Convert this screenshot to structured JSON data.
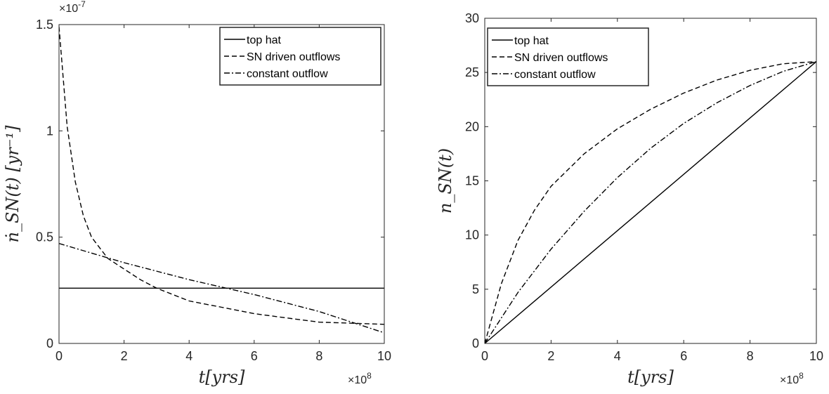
{
  "chart_data": [
    {
      "type": "line",
      "xlabel": "t[yrs]",
      "ylabel": "ṅ_SN(t) [yr⁻¹]",
      "x_multiplier": "×10",
      "x_multiplier_exp": "8",
      "y_multiplier": "×10",
      "y_multiplier_exp": "-7",
      "xlim": [
        0,
        10
      ],
      "ylim": [
        0,
        1.5
      ],
      "xticks": [
        "0",
        "2",
        "4",
        "6",
        "8",
        "10"
      ],
      "yticks": [
        "0",
        "0.5",
        "1",
        "1.5"
      ],
      "grid": false,
      "legend_position": "top-right",
      "series": [
        {
          "name": "top hat",
          "style": "solid",
          "x": [
            0,
            10
          ],
          "y": [
            0.26,
            0.26
          ]
        },
        {
          "name": "SN driven outflows",
          "style": "dashed",
          "x": [
            0,
            0.25,
            0.5,
            0.75,
            1,
            1.5,
            2,
            2.5,
            3,
            4,
            5,
            6,
            7,
            8,
            9,
            10
          ],
          "y": [
            1.49,
            1.02,
            0.76,
            0.6,
            0.5,
            0.4,
            0.35,
            0.3,
            0.26,
            0.2,
            0.17,
            0.14,
            0.12,
            0.1,
            0.095,
            0.09
          ]
        },
        {
          "name": "constant outflow",
          "style": "dashdot",
          "x": [
            0,
            2,
            4,
            6,
            8,
            10
          ],
          "y": [
            0.47,
            0.38,
            0.3,
            0.23,
            0.15,
            0.05
          ]
        }
      ]
    },
    {
      "type": "line",
      "xlabel": "t[yrs]",
      "ylabel": "n_SN(t)",
      "x_multiplier": "×10",
      "x_multiplier_exp": "8",
      "xlim": [
        0,
        10
      ],
      "ylim": [
        0,
        30
      ],
      "xticks": [
        "0",
        "2",
        "4",
        "6",
        "8",
        "10"
      ],
      "yticks": [
        "0",
        "5",
        "10",
        "15",
        "20",
        "25",
        "30"
      ],
      "grid": false,
      "legend_position": "top-left",
      "series": [
        {
          "name": "top hat",
          "style": "solid",
          "x": [
            0,
            10
          ],
          "y": [
            0,
            26
          ]
        },
        {
          "name": "SN driven outflows",
          "style": "dashed",
          "x": [
            0,
            0.5,
            1,
            1.5,
            2,
            3,
            4,
            5,
            6,
            7,
            8,
            9,
            10
          ],
          "y": [
            0,
            5.5,
            9.5,
            12.3,
            14.5,
            17.5,
            19.8,
            21.6,
            23.1,
            24.3,
            25.2,
            25.8,
            26
          ]
        },
        {
          "name": "constant outflow",
          "style": "dashdot",
          "x": [
            0,
            1,
            2,
            3,
            4,
            5,
            6,
            7,
            8,
            9,
            10
          ],
          "y": [
            0,
            4.7,
            8.7,
            12.2,
            15.3,
            18.0,
            20.3,
            22.2,
            23.8,
            25.1,
            26
          ]
        }
      ]
    }
  ]
}
